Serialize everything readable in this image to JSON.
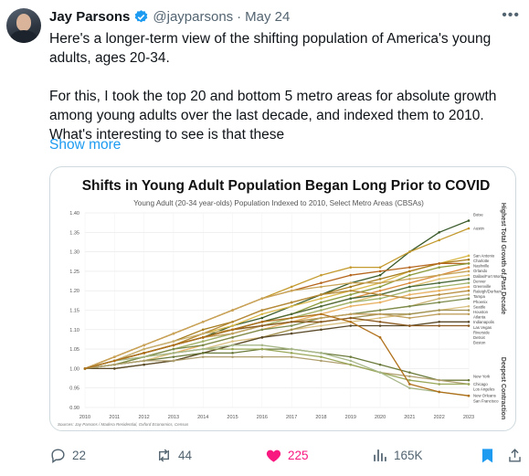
{
  "author": {
    "name": "Jay Parsons",
    "handle": "@jayparsons",
    "date": "May 24"
  },
  "tweet": {
    "paragraph1": "Here's a longer-term view of the shifting population of America's young adults, ages 20-34.",
    "paragraph2": "For this, I took the top 20 and bottom 5 metro areas for absolute growth among young adults over the last decade, and indexed them to 2010. What's interesting to see is that these",
    "show_more": "Show more"
  },
  "actions": {
    "replies": "22",
    "reposts": "44",
    "likes": "225",
    "views": "165K"
  },
  "colors": {
    "accent": "#1d9bf0",
    "like": "#f91880",
    "muted": "#536471"
  },
  "icons": [
    "verified-badge-icon",
    "more-icon",
    "reply-icon",
    "repost-icon",
    "like-icon",
    "views-icon",
    "bookmark-icon",
    "share-icon"
  ],
  "chart_data": {
    "type": "line",
    "title": "Shifts in Young Adult Population Began Long Prior to COVID",
    "subtitle": "Young Adult (20-34 year-olds) Population Indexed to 2010, Select Metro Areas (CBSAs)",
    "source": "Sources: Jay Parsons / Madera Residential, Oxford Economics, Census",
    "right_label_top": "Highest Total Growth of Past Decade",
    "right_label_bottom": "Deepest Contraction",
    "x": [
      2010,
      2011,
      2012,
      2013,
      2014,
      2015,
      2016,
      2017,
      2018,
      2019,
      2020,
      2021,
      2022,
      2023
    ],
    "yticks": [
      "0.90",
      "0.95",
      "1.00",
      "1.05",
      "1.10",
      "1.15",
      "1.20",
      "1.25",
      "1.30",
      "1.35",
      "1.40"
    ],
    "ylim": [
      0.9,
      1.4
    ],
    "grid": true,
    "series": [
      {
        "name": "Boise",
        "color": "#3a5a2a",
        "values": [
          1.0,
          1.02,
          1.04,
          1.06,
          1.08,
          1.11,
          1.13,
          1.16,
          1.19,
          1.22,
          1.24,
          1.3,
          1.35,
          1.38
        ]
      },
      {
        "name": "Austin",
        "color": "#c49a2e",
        "values": [
          1.0,
          1.03,
          1.06,
          1.09,
          1.12,
          1.15,
          1.18,
          1.21,
          1.24,
          1.26,
          1.26,
          1.3,
          1.33,
          1.36
        ]
      },
      {
        "name": "San Antonio",
        "color": "#d9b84a",
        "values": [
          1.0,
          1.02,
          1.04,
          1.06,
          1.09,
          1.11,
          1.14,
          1.16,
          1.18,
          1.2,
          1.22,
          1.25,
          1.27,
          1.29
        ]
      },
      {
        "name": "Charlotte",
        "color": "#a67c1c",
        "values": [
          1.0,
          1.02,
          1.05,
          1.07,
          1.1,
          1.12,
          1.15,
          1.17,
          1.19,
          1.21,
          1.23,
          1.25,
          1.27,
          1.28
        ]
      },
      {
        "name": "Nashville",
        "color": "#b5651d",
        "values": [
          1.0,
          1.03,
          1.06,
          1.09,
          1.12,
          1.15,
          1.18,
          1.2,
          1.22,
          1.24,
          1.25,
          1.26,
          1.27,
          1.27
        ]
      },
      {
        "name": "Orlando",
        "color": "#8a9a3a",
        "values": [
          1.0,
          1.02,
          1.04,
          1.06,
          1.08,
          1.1,
          1.12,
          1.14,
          1.17,
          1.19,
          1.21,
          1.24,
          1.26,
          1.27
        ]
      },
      {
        "name": "Dallas/Fort Worth",
        "color": "#d98a3a",
        "values": [
          1.0,
          1.02,
          1.04,
          1.06,
          1.08,
          1.1,
          1.12,
          1.14,
          1.16,
          1.18,
          1.2,
          1.22,
          1.24,
          1.26
        ]
      },
      {
        "name": "Denver",
        "color": "#c9a55a",
        "values": [
          1.0,
          1.03,
          1.06,
          1.09,
          1.12,
          1.15,
          1.18,
          1.2,
          1.21,
          1.22,
          1.22,
          1.23,
          1.24,
          1.25
        ]
      },
      {
        "name": "Greenville",
        "color": "#e0c070",
        "values": [
          1.0,
          1.01,
          1.03,
          1.05,
          1.07,
          1.09,
          1.11,
          1.13,
          1.15,
          1.17,
          1.19,
          1.21,
          1.23,
          1.24
        ]
      },
      {
        "name": "Raleigh/Durham",
        "color": "#4a6a3a",
        "values": [
          1.0,
          1.02,
          1.04,
          1.06,
          1.08,
          1.1,
          1.12,
          1.14,
          1.16,
          1.18,
          1.19,
          1.21,
          1.22,
          1.23
        ]
      },
      {
        "name": "Tampa",
        "color": "#9fb26a",
        "values": [
          1.0,
          1.01,
          1.03,
          1.05,
          1.07,
          1.09,
          1.11,
          1.13,
          1.15,
          1.17,
          1.18,
          1.2,
          1.21,
          1.22
        ]
      },
      {
        "name": "Phoenix",
        "color": "#e8b060",
        "values": [
          1.0,
          1.01,
          1.02,
          1.04,
          1.06,
          1.08,
          1.1,
          1.12,
          1.14,
          1.16,
          1.17,
          1.19,
          1.2,
          1.21
        ]
      },
      {
        "name": "Seattle",
        "color": "#b58a3a",
        "values": [
          1.0,
          1.02,
          1.04,
          1.06,
          1.09,
          1.12,
          1.15,
          1.17,
          1.19,
          1.2,
          1.19,
          1.18,
          1.19,
          1.2
        ]
      },
      {
        "name": "Houston",
        "color": "#c8b070",
        "values": [
          1.0,
          1.02,
          1.05,
          1.07,
          1.09,
          1.1,
          1.11,
          1.12,
          1.13,
          1.14,
          1.15,
          1.16,
          1.18,
          1.19
        ]
      },
      {
        "name": "Atlanta",
        "color": "#7a8a4a",
        "values": [
          1.0,
          1.01,
          1.03,
          1.05,
          1.06,
          1.08,
          1.1,
          1.11,
          1.13,
          1.14,
          1.15,
          1.16,
          1.17,
          1.18
        ]
      },
      {
        "name": "Indianapolis",
        "color": "#d9c080",
        "values": [
          1.0,
          1.01,
          1.02,
          1.04,
          1.05,
          1.07,
          1.08,
          1.1,
          1.11,
          1.12,
          1.13,
          1.14,
          1.15,
          1.16
        ]
      },
      {
        "name": "Las Vegas",
        "color": "#a09050",
        "values": [
          1.0,
          1.0,
          1.01,
          1.02,
          1.04,
          1.06,
          1.08,
          1.1,
          1.12,
          1.13,
          1.14,
          1.14,
          1.15,
          1.15
        ]
      },
      {
        "name": "Riverside",
        "color": "#c0a060",
        "values": [
          1.0,
          1.02,
          1.04,
          1.06,
          1.08,
          1.09,
          1.11,
          1.12,
          1.13,
          1.14,
          1.14,
          1.13,
          1.14,
          1.14
        ]
      },
      {
        "name": "Detroit",
        "color": "#5a4a2a",
        "values": [
          1.0,
          1.0,
          1.01,
          1.02,
          1.04,
          1.06,
          1.08,
          1.09,
          1.1,
          1.11,
          1.11,
          1.11,
          1.12,
          1.12
        ]
      },
      {
        "name": "Boston",
        "color": "#8a5a20",
        "values": [
          1.0,
          1.02,
          1.04,
          1.06,
          1.08,
          1.1,
          1.11,
          1.12,
          1.12,
          1.13,
          1.12,
          1.11,
          1.11,
          1.11
        ]
      },
      {
        "name": "New York",
        "color": "#6a7a3a",
        "values": [
          1.0,
          1.01,
          1.02,
          1.03,
          1.04,
          1.04,
          1.05,
          1.05,
          1.04,
          1.03,
          1.01,
          0.99,
          0.97,
          0.97
        ]
      },
      {
        "name": "Chicago",
        "color": "#b0a070",
        "values": [
          1.0,
          1.01,
          1.02,
          1.02,
          1.03,
          1.03,
          1.03,
          1.03,
          1.02,
          1.01,
          0.99,
          0.98,
          0.97,
          0.96
        ]
      },
      {
        "name": "Los Angeles",
        "color": "#9aa85a",
        "values": [
          1.0,
          1.02,
          1.03,
          1.04,
          1.05,
          1.05,
          1.05,
          1.04,
          1.03,
          1.01,
          0.99,
          0.97,
          0.96,
          0.96
        ]
      },
      {
        "name": "New Orleans",
        "color": "#a8b88a",
        "values": [
          1.0,
          1.02,
          1.03,
          1.04,
          1.05,
          1.06,
          1.06,
          1.05,
          1.04,
          1.02,
          0.99,
          0.95,
          0.94,
          0.93
        ]
      },
      {
        "name": "San Francisco",
        "color": "#b0701a",
        "values": [
          1.0,
          1.02,
          1.04,
          1.06,
          1.08,
          1.1,
          1.12,
          1.13,
          1.14,
          1.12,
          1.08,
          0.96,
          0.94,
          0.93
        ]
      }
    ],
    "label_positions_note": ""
  }
}
